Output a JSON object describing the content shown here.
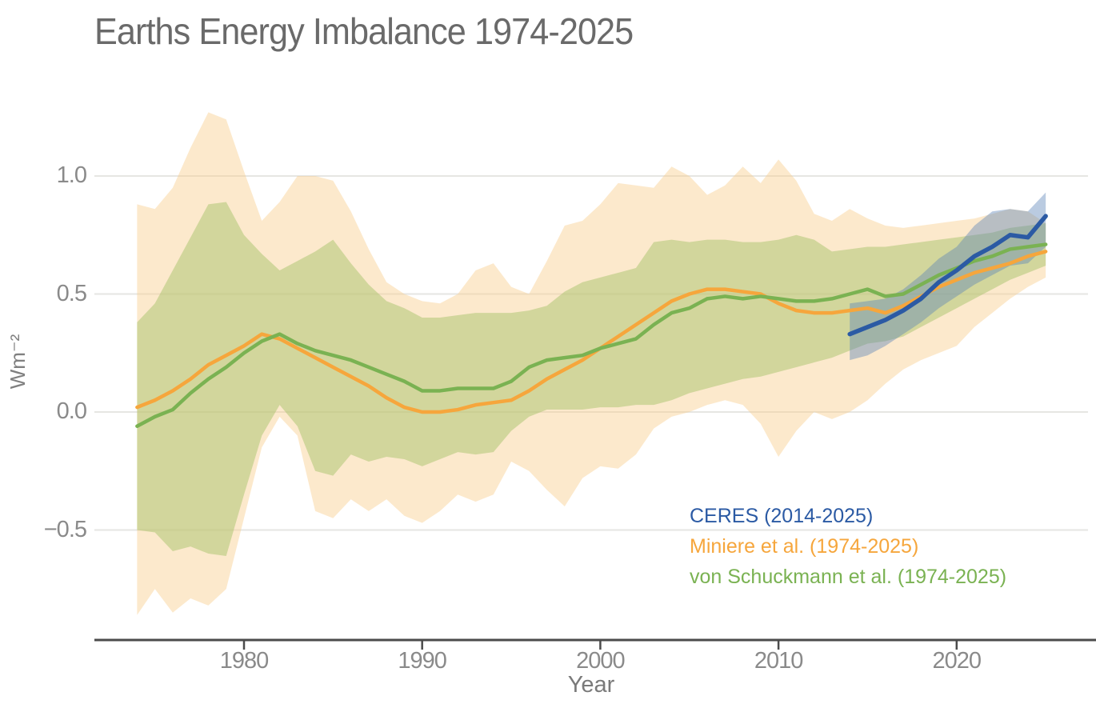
{
  "title": "Earths Energy Imbalance 1974-2025",
  "axes": {
    "x_label": "Year",
    "y_label": "Wm⁻²",
    "x_ticks": [
      {
        "label": "1980",
        "year": 1980
      },
      {
        "label": "1990",
        "year": 1990
      },
      {
        "label": "2000",
        "year": 2000
      },
      {
        "label": "2010",
        "year": 2010
      },
      {
        "label": "2020",
        "year": 2020
      }
    ],
    "y_ticks": [
      {
        "label": "1.0",
        "value": 1.0
      },
      {
        "label": "0.5",
        "value": 0.5
      },
      {
        "label": "0.0",
        "value": 0.0
      },
      {
        "label": "−0.5",
        "value": -0.5
      }
    ]
  },
  "legend": [
    {
      "label": "CERES (2014-2025)",
      "color": "#2b5aa4"
    },
    {
      "label": "Miniere et al. (1974-2025)",
      "color": "#f6a63c"
    },
    {
      "label": "von Schuckmann et al. (1974-2025)",
      "color": "#7ab252"
    }
  ],
  "chart_data": {
    "type": "line",
    "title": "Earths Energy Imbalance 1974-2025",
    "xlabel": "Year",
    "ylabel": "Wm⁻²",
    "xlim": [
      1971.6,
      2027.4
    ],
    "ylim": [
      -0.97,
      1.34
    ],
    "grid": "horizontal",
    "legend_position": "lower-right",
    "colors": {
      "axis": "#4b4b4b",
      "gridline": "#e6e6e3",
      "background": "#ffffff"
    },
    "series": [
      {
        "name": "Miniere et al. (1974-2025)",
        "color": "#f6a63c",
        "band_color": "#f8ce8d",
        "band_opacity": 0.45,
        "line_width": 4.5,
        "start_year": 1974,
        "values": [
          0.02,
          0.05,
          0.09,
          0.14,
          0.2,
          0.24,
          0.28,
          0.33,
          0.31,
          0.27,
          0.23,
          0.19,
          0.15,
          0.11,
          0.06,
          0.02,
          0.0,
          0.0,
          0.01,
          0.03,
          0.04,
          0.05,
          0.09,
          0.14,
          0.18,
          0.22,
          0.27,
          0.32,
          0.37,
          0.42,
          0.47,
          0.5,
          0.52,
          0.52,
          0.51,
          0.5,
          0.46,
          0.43,
          0.42,
          0.42,
          0.43,
          0.44,
          0.42,
          0.45,
          0.49,
          0.53,
          0.56,
          0.59,
          0.61,
          0.63,
          0.66,
          0.68
        ],
        "band_upper": [
          0.88,
          0.86,
          0.95,
          1.12,
          1.27,
          1.24,
          1.02,
          0.81,
          0.89,
          1.0,
          1.0,
          0.98,
          0.85,
          0.69,
          0.55,
          0.5,
          0.47,
          0.46,
          0.5,
          0.6,
          0.63,
          0.53,
          0.5,
          0.64,
          0.79,
          0.81,
          0.88,
          0.97,
          0.96,
          0.95,
          1.04,
          1.0,
          0.92,
          0.96,
          1.04,
          0.97,
          1.07,
          0.98,
          0.84,
          0.81,
          0.86,
          0.82,
          0.79,
          0.78,
          0.79,
          0.8,
          0.81,
          0.82,
          0.84,
          0.86,
          0.85,
          0.8
        ],
        "band_lower": [
          -0.86,
          -0.75,
          -0.85,
          -0.79,
          -0.82,
          -0.75,
          -0.45,
          -0.15,
          -0.02,
          -0.1,
          -0.42,
          -0.45,
          -0.37,
          -0.42,
          -0.37,
          -0.44,
          -0.47,
          -0.42,
          -0.35,
          -0.38,
          -0.35,
          -0.21,
          -0.25,
          -0.33,
          -0.4,
          -0.28,
          -0.23,
          -0.24,
          -0.18,
          -0.07,
          -0.02,
          0.0,
          0.03,
          0.05,
          0.03,
          -0.05,
          -0.19,
          -0.08,
          0.0,
          -0.03,
          0.0,
          0.05,
          0.12,
          0.18,
          0.22,
          0.25,
          0.28,
          0.36,
          0.42,
          0.48,
          0.53,
          0.57
        ]
      },
      {
        "name": "von Schuckmann et al. (1974-2025)",
        "color": "#7ab252",
        "band_color": "#a8c36b",
        "band_opacity": 0.5,
        "line_width": 4.5,
        "start_year": 1974,
        "values": [
          -0.06,
          -0.02,
          0.01,
          0.08,
          0.14,
          0.19,
          0.25,
          0.3,
          0.33,
          0.29,
          0.26,
          0.24,
          0.22,
          0.19,
          0.16,
          0.13,
          0.09,
          0.09,
          0.1,
          0.1,
          0.1,
          0.13,
          0.19,
          0.22,
          0.23,
          0.24,
          0.27,
          0.29,
          0.31,
          0.37,
          0.42,
          0.44,
          0.48,
          0.49,
          0.48,
          0.49,
          0.48,
          0.47,
          0.47,
          0.48,
          0.5,
          0.52,
          0.49,
          0.5,
          0.54,
          0.58,
          0.61,
          0.64,
          0.66,
          0.69,
          0.7,
          0.71
        ],
        "band_upper": [
          0.38,
          0.46,
          0.6,
          0.74,
          0.88,
          0.89,
          0.75,
          0.67,
          0.6,
          0.64,
          0.68,
          0.73,
          0.63,
          0.54,
          0.47,
          0.44,
          0.4,
          0.4,
          0.41,
          0.42,
          0.42,
          0.42,
          0.43,
          0.45,
          0.51,
          0.55,
          0.57,
          0.59,
          0.61,
          0.72,
          0.73,
          0.72,
          0.73,
          0.73,
          0.72,
          0.72,
          0.73,
          0.75,
          0.73,
          0.68,
          0.69,
          0.7,
          0.7,
          0.71,
          0.72,
          0.73,
          0.74,
          0.75,
          0.76,
          0.78,
          0.79,
          0.8
        ],
        "band_lower": [
          -0.5,
          -0.51,
          -0.59,
          -0.57,
          -0.6,
          -0.61,
          -0.35,
          -0.1,
          0.03,
          -0.06,
          -0.25,
          -0.27,
          -0.18,
          -0.21,
          -0.19,
          -0.2,
          -0.23,
          -0.2,
          -0.17,
          -0.18,
          -0.17,
          -0.08,
          -0.02,
          0.01,
          0.01,
          0.01,
          0.02,
          0.02,
          0.03,
          0.03,
          0.05,
          0.08,
          0.1,
          0.12,
          0.14,
          0.15,
          0.17,
          0.19,
          0.21,
          0.23,
          0.26,
          0.29,
          0.3,
          0.32,
          0.36,
          0.4,
          0.44,
          0.48,
          0.52,
          0.56,
          0.59,
          0.62
        ]
      },
      {
        "name": "CERES (2014-2025)",
        "color": "#2b5aa4",
        "band_color": "#5b83b8",
        "band_opacity": 0.42,
        "line_width": 5.5,
        "start_year": 2014,
        "values": [
          0.33,
          0.36,
          0.39,
          0.43,
          0.48,
          0.55,
          0.6,
          0.66,
          0.7,
          0.75,
          0.74,
          0.83
        ],
        "band_upper": [
          0.46,
          0.47,
          0.48,
          0.52,
          0.58,
          0.65,
          0.7,
          0.79,
          0.85,
          0.86,
          0.85,
          0.93
        ],
        "band_lower": [
          0.22,
          0.24,
          0.28,
          0.33,
          0.38,
          0.44,
          0.49,
          0.54,
          0.58,
          0.62,
          0.63,
          0.7
        ]
      }
    ]
  }
}
